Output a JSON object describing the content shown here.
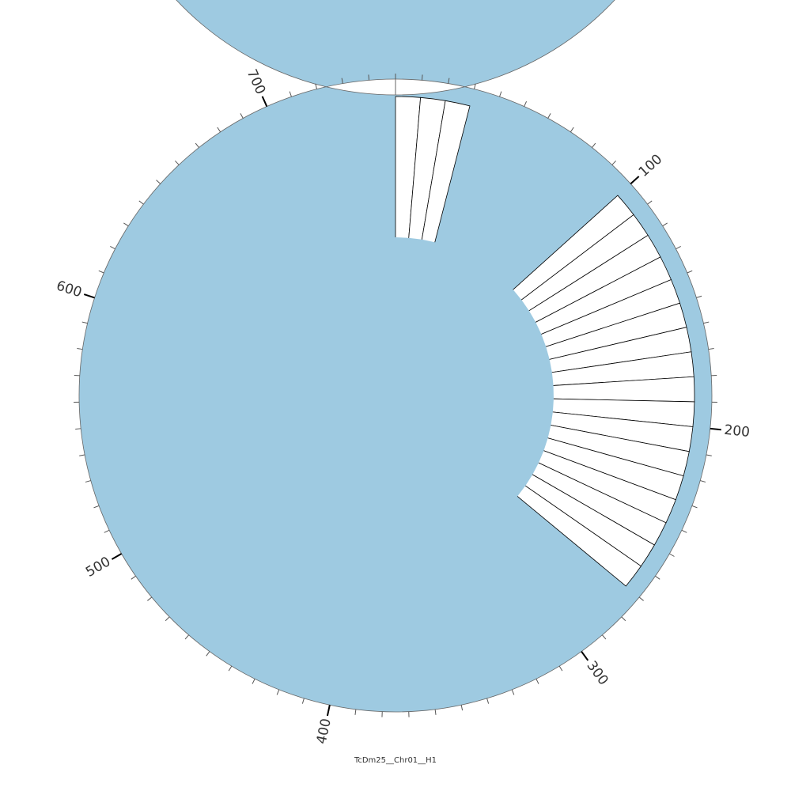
{
  "chart_data": {
    "type": "circos",
    "title": "TcDm25__Chr01__H1",
    "xlim": [
      0,
      750
    ],
    "xticks": [
      100,
      200,
      300,
      400,
      500,
      600,
      700
    ],
    "minor_xticks": [
      0,
      10,
      20,
      30,
      40,
      50,
      60,
      70,
      80,
      90,
      100,
      110,
      120,
      130,
      140,
      150,
      160,
      170,
      180,
      190,
      200,
      210,
      220,
      230,
      240,
      250,
      260,
      270,
      280,
      290,
      300,
      310,
      320,
      330,
      340,
      350,
      360,
      370,
      380,
      390,
      400,
      410,
      420,
      430,
      440,
      450,
      460,
      470,
      480,
      490,
      500,
      510,
      520,
      530,
      540,
      550,
      560,
      570,
      580,
      590,
      600,
      610,
      620,
      630,
      640,
      650,
      660,
      670,
      680,
      690,
      700,
      710,
      720,
      730,
      740
    ],
    "ring_color": "#9ecae1",
    "rlim": [
      0,
      1
    ],
    "bars": [
      {
        "bins": [
          0,
          10,
          20,
          30
        ],
        "values": [
          1,
          1,
          1
        ]
      },
      {
        "bins": [
          100,
          110,
          120,
          130,
          140,
          150,
          160,
          170,
          180,
          190,
          200,
          210,
          220,
          230,
          240,
          250,
          260,
          270
        ],
        "values": [
          1,
          1,
          1,
          1,
          1,
          1,
          1,
          1,
          1,
          1,
          1,
          1,
          1,
          1,
          1,
          1,
          1
        ]
      }
    ]
  }
}
